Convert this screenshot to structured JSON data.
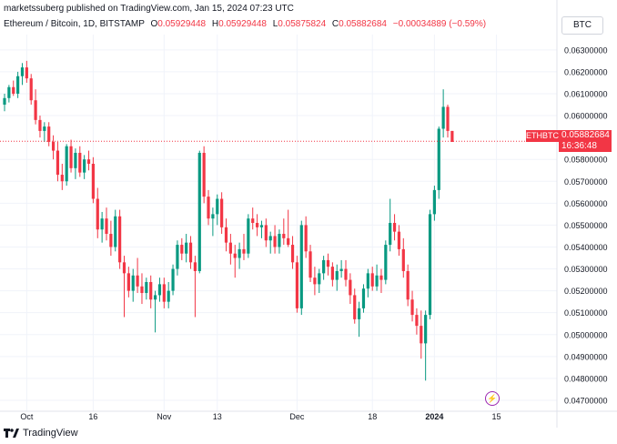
{
  "header": {
    "publisher": "marketssuberg published on TradingView.com, Jan 15, 2024 07:23 UTC",
    "symbol": "Ethereum / Bitcoin, 1D, BITSTAMP",
    "open_label": "O",
    "open": "0.05929448",
    "high_label": "H",
    "high": "0.05929448",
    "low_label": "L",
    "low": "0.05875824",
    "close_label": "C",
    "close": "0.05882684",
    "change": "−0.00034889 (−0.59%)",
    "currency": "BTC"
  },
  "price_tag": {
    "symbol": "ETHBTC",
    "price": "0.05882684",
    "countdown": "16:36:48"
  },
  "footer": {
    "brand": "TradingView"
  },
  "colors": {
    "up": "#089981",
    "down": "#f23645",
    "grid": "#f0f3fa",
    "axis_text": "#131722"
  },
  "chart_data": {
    "type": "candlestick",
    "yaxis": {
      "min": 0.0465,
      "max": 0.0637,
      "ticks": [
        0.047,
        0.048,
        0.049,
        0.05,
        0.051,
        0.052,
        0.053,
        0.054,
        0.055,
        0.056,
        0.057,
        0.058,
        0.06,
        0.061,
        0.062,
        0.063
      ],
      "tick_labels": [
        "0.04700000",
        "0.04800000",
        "0.04900000",
        "0.05000000",
        "0.05100000",
        "0.05200000",
        "0.05300000",
        "0.05400000",
        "0.05500000",
        "0.05600000",
        "0.05700000",
        "0.05800000",
        "0.06000000",
        "0.06100000",
        "0.06200000",
        "0.06300000"
      ]
    },
    "xaxis": {
      "labels": [
        {
          "text": "Oct",
          "index": 5
        },
        {
          "text": "16",
          "index": 20
        },
        {
          "text": "Nov",
          "index": 36
        },
        {
          "text": "13",
          "index": 48
        },
        {
          "text": "Dec",
          "index": 66
        },
        {
          "text": "18",
          "index": 83
        },
        {
          "text": "2024",
          "index": 97
        },
        {
          "text": "15",
          "index": 111
        }
      ]
    },
    "candles": [
      [
        0.0605,
        0.061,
        0.0602,
        0.0608
      ],
      [
        0.0608,
        0.0614,
        0.0606,
        0.0613
      ],
      [
        0.0613,
        0.0616,
        0.0609,
        0.061
      ],
      [
        0.061,
        0.062,
        0.0608,
        0.0618
      ],
      [
        0.0618,
        0.0624,
        0.0614,
        0.0622
      ],
      [
        0.0622,
        0.0625,
        0.0615,
        0.0617
      ],
      [
        0.0617,
        0.0619,
        0.0605,
        0.0607
      ],
      [
        0.0607,
        0.0612,
        0.0596,
        0.0598
      ],
      [
        0.0598,
        0.06,
        0.059,
        0.0593
      ],
      [
        0.0593,
        0.0597,
        0.0588,
        0.0595
      ],
      [
        0.0595,
        0.0597,
        0.0586,
        0.0588
      ],
      [
        0.0588,
        0.0591,
        0.058,
        0.0584
      ],
      [
        0.0584,
        0.0588,
        0.057,
        0.0573
      ],
      [
        0.0573,
        0.0578,
        0.0566,
        0.057
      ],
      [
        0.057,
        0.0587,
        0.0568,
        0.0586
      ],
      [
        0.0586,
        0.0589,
        0.0574,
        0.0576
      ],
      [
        0.0576,
        0.0585,
        0.0571,
        0.0583
      ],
      [
        0.0583,
        0.0586,
        0.0572,
        0.0574
      ],
      [
        0.0574,
        0.0582,
        0.0571,
        0.058
      ],
      [
        0.058,
        0.0584,
        0.0575,
        0.0578
      ],
      [
        0.0578,
        0.0581,
        0.056,
        0.0562
      ],
      [
        0.0562,
        0.0567,
        0.0544,
        0.0548
      ],
      [
        0.0548,
        0.0556,
        0.0542,
        0.0553
      ],
      [
        0.0553,
        0.0558,
        0.0543,
        0.0546
      ],
      [
        0.0546,
        0.0552,
        0.0536,
        0.054
      ],
      [
        0.054,
        0.0557,
        0.0538,
        0.0554
      ],
      [
        0.0554,
        0.0557,
        0.053,
        0.0533
      ],
      [
        0.0533,
        0.0536,
        0.0508,
        0.0528
      ],
      [
        0.0528,
        0.0531,
        0.0517,
        0.052
      ],
      [
        0.052,
        0.053,
        0.0515,
        0.0527
      ],
      [
        0.0527,
        0.0535,
        0.0519,
        0.0522
      ],
      [
        0.0522,
        0.0528,
        0.0514,
        0.0519
      ],
      [
        0.0519,
        0.0526,
        0.0516,
        0.0524
      ],
      [
        0.0524,
        0.0527,
        0.0512,
        0.0516
      ],
      [
        0.0516,
        0.052,
        0.0501,
        0.0518
      ],
      [
        0.0518,
        0.0526,
        0.0515,
        0.0523
      ],
      [
        0.0523,
        0.0526,
        0.0512,
        0.0515
      ],
      [
        0.0515,
        0.0524,
        0.0512,
        0.052
      ],
      [
        0.052,
        0.0532,
        0.0518,
        0.053
      ],
      [
        0.053,
        0.0543,
        0.0527,
        0.0541
      ],
      [
        0.0541,
        0.0544,
        0.0534,
        0.0537
      ],
      [
        0.0537,
        0.0546,
        0.0533,
        0.0542
      ],
      [
        0.0542,
        0.0545,
        0.053,
        0.0533
      ],
      [
        0.0533,
        0.0536,
        0.0508,
        0.0529
      ],
      [
        0.0529,
        0.0584,
        0.0528,
        0.0583
      ],
      [
        0.0583,
        0.0586,
        0.056,
        0.0563
      ],
      [
        0.0563,
        0.0566,
        0.055,
        0.0553
      ],
      [
        0.0553,
        0.0558,
        0.0545,
        0.0555
      ],
      [
        0.0555,
        0.0564,
        0.055,
        0.0562
      ],
      [
        0.0562,
        0.0565,
        0.0546,
        0.0549
      ],
      [
        0.0549,
        0.0553,
        0.0538,
        0.0542
      ],
      [
        0.0542,
        0.0546,
        0.0532,
        0.0537
      ],
      [
        0.0537,
        0.0541,
        0.0526,
        0.0535
      ],
      [
        0.0535,
        0.0542,
        0.053,
        0.0539
      ],
      [
        0.0539,
        0.0546,
        0.0534,
        0.0537
      ],
      [
        0.0537,
        0.0555,
        0.0535,
        0.0553
      ],
      [
        0.0553,
        0.0558,
        0.0548,
        0.0551
      ],
      [
        0.0551,
        0.0555,
        0.0545,
        0.0549
      ],
      [
        0.0549,
        0.0552,
        0.0544,
        0.055
      ],
      [
        0.055,
        0.0553,
        0.054,
        0.0543
      ],
      [
        0.0543,
        0.0547,
        0.0537,
        0.0545
      ],
      [
        0.0545,
        0.055,
        0.0537,
        0.054
      ],
      [
        0.054,
        0.0548,
        0.0537,
        0.0546
      ],
      [
        0.0546,
        0.0553,
        0.0541,
        0.0544
      ],
      [
        0.0544,
        0.0557,
        0.054,
        0.0541
      ],
      [
        0.0541,
        0.0545,
        0.053,
        0.0533
      ],
      [
        0.0533,
        0.0536,
        0.051,
        0.0512
      ],
      [
        0.0512,
        0.0552,
        0.0509,
        0.055
      ],
      [
        0.055,
        0.0554,
        0.0535,
        0.0538
      ],
      [
        0.0538,
        0.0541,
        0.0524,
        0.0526
      ],
      [
        0.0526,
        0.0531,
        0.0518,
        0.0523
      ],
      [
        0.0523,
        0.053,
        0.0519,
        0.0528
      ],
      [
        0.0528,
        0.0536,
        0.0525,
        0.0534
      ],
      [
        0.0534,
        0.0537,
        0.0527,
        0.0531
      ],
      [
        0.0531,
        0.0533,
        0.0522,
        0.0525
      ],
      [
        0.0525,
        0.0532,
        0.052,
        0.0529
      ],
      [
        0.0529,
        0.0534,
        0.0526,
        0.053
      ],
      [
        0.053,
        0.0534,
        0.0522,
        0.0525
      ],
      [
        0.0525,
        0.0528,
        0.0514,
        0.0518
      ],
      [
        0.0518,
        0.0521,
        0.0505,
        0.0507
      ],
      [
        0.0507,
        0.0515,
        0.0499,
        0.0512
      ],
      [
        0.0512,
        0.0523,
        0.051,
        0.0521
      ],
      [
        0.0521,
        0.053,
        0.0517,
        0.0528
      ],
      [
        0.0528,
        0.0531,
        0.052,
        0.0522
      ],
      [
        0.0522,
        0.0532,
        0.052,
        0.0527
      ],
      [
        0.0527,
        0.053,
        0.0519,
        0.0525
      ],
      [
        0.0525,
        0.0543,
        0.0523,
        0.0541
      ],
      [
        0.0541,
        0.0562,
        0.0538,
        0.0551
      ],
      [
        0.0551,
        0.0555,
        0.0543,
        0.0547
      ],
      [
        0.0547,
        0.055,
        0.0536,
        0.0539
      ],
      [
        0.0539,
        0.0544,
        0.0526,
        0.0529
      ],
      [
        0.0529,
        0.0532,
        0.0513,
        0.0516
      ],
      [
        0.0516,
        0.052,
        0.0506,
        0.0509
      ],
      [
        0.0509,
        0.0512,
        0.05,
        0.0504
      ],
      [
        0.0504,
        0.0511,
        0.0489,
        0.0496
      ],
      [
        0.0496,
        0.0511,
        0.0479,
        0.0509
      ],
      [
        0.0509,
        0.0557,
        0.0507,
        0.0555
      ],
      [
        0.0555,
        0.0568,
        0.0552,
        0.0566
      ],
      [
        0.0566,
        0.0595,
        0.0562,
        0.0594
      ],
      [
        0.0594,
        0.0612,
        0.059,
        0.0604
      ],
      [
        0.0604,
        0.0605,
        0.059,
        0.0593
      ],
      [
        0.0593,
        0.0593,
        0.0588,
        0.0588
      ]
    ],
    "last_price": 0.05882684
  }
}
